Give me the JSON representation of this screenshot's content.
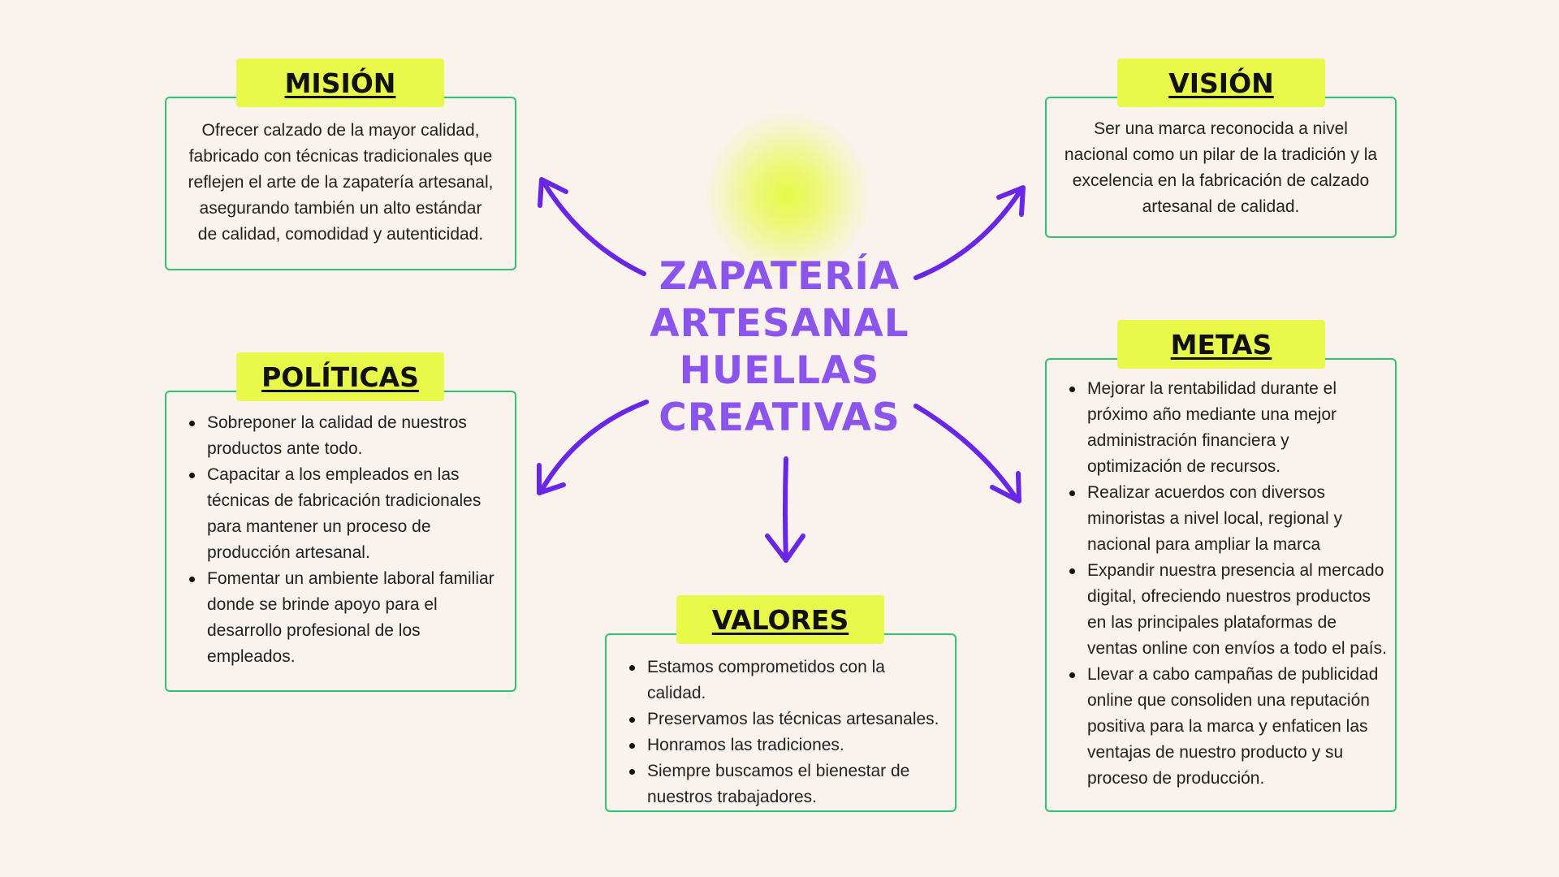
{
  "title_lines": [
    "ZAPATERÍA",
    "ARTESANAL",
    "HUELLAS",
    "CREATIVAS"
  ],
  "colors": {
    "background": "#f9f2ed",
    "title": "#8b54ec",
    "arrow": "#6a26e6",
    "box_border": "#2fc46e",
    "label_bg": "#e8f94a",
    "glow": "#e4fa3c"
  },
  "mision": {
    "label": "MISIÓN",
    "text": "Ofrecer calzado de la mayor calidad, fabricado con técnicas tradicionales que reflejen el arte de la zapatería artesanal, asegurando también un alto estándar de calidad, comodidad y autenticidad."
  },
  "vision": {
    "label": "VISIÓN",
    "text": "Ser una marca reconocida a nivel nacional como un pilar de la tradición y la excelencia en la fabricación de calzado artesanal de calidad."
  },
  "politicas": {
    "label": "POLÍTICAS",
    "items": [
      "Sobreponer la calidad de nuestros productos ante todo.",
      "Capacitar a los empleados en las técnicas de fabricación tradicionales para mantener un proceso de producción artesanal.",
      "Fomentar un ambiente laboral familiar donde se brinde apoyo para el desarrollo profesional de los empleados."
    ]
  },
  "valores": {
    "label": "VALORES",
    "items": [
      "Estamos comprometidos con la calidad.",
      "Preservamos las técnicas artesanales.",
      "Honramos las tradiciones.",
      "Siempre buscamos el bienestar de nuestros trabajadores."
    ]
  },
  "metas": {
    "label": "METAS",
    "items": [
      "Mejorar la rentabilidad durante el próximo año mediante una mejor administración financiera y optimización de recursos.",
      "Realizar acuerdos con diversos minoristas a nivel local, regional y nacional para ampliar la marca",
      "Expandir nuestra presencia al mercado digital, ofreciendo nuestros productos en las principales plataformas de ventas online con envíos a todo el país.",
      "Llevar a cabo campañas de publicidad online que consoliden una reputación positiva para la marca y enfaticen las ventajas de nuestro producto y su proceso de producción."
    ]
  }
}
